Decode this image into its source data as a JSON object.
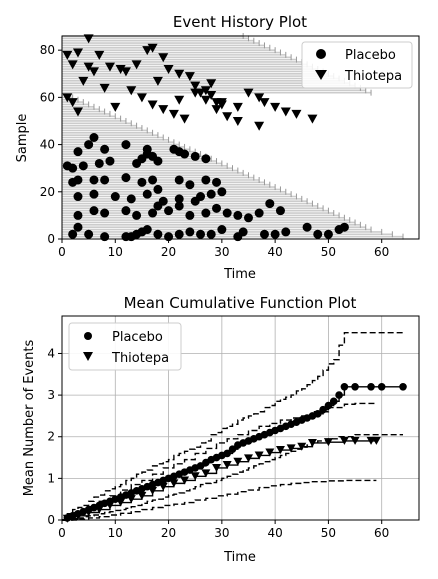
{
  "figure": {
    "top": {
      "title": "Event History Plot",
      "xlabel": "Time",
      "ylabel": "Sample",
      "legend": [
        {
          "label": "Placebo",
          "marker": "circle"
        },
        {
          "label": "Thiotepa",
          "marker": "triangle-down"
        }
      ]
    },
    "bottom": {
      "title": "Mean Cumulative Function Plot",
      "xlabel": "Time",
      "ylabel": "Mean Number of Events",
      "legend": [
        {
          "label": "Placebo",
          "marker": "circle"
        },
        {
          "label": "Thiotepa",
          "marker": "triangle-down"
        }
      ]
    }
  },
  "colors": {
    "lines": "#cccccc",
    "censor": "#999999",
    "marker": "#000000",
    "grid": "#b0b0b0"
  },
  "chart_data": [
    {
      "type": "scatter",
      "title": "Event History Plot",
      "xlabel": "Time",
      "ylabel": "Sample",
      "xlim": [
        0,
        67
      ],
      "ylim": [
        0,
        86
      ],
      "xticks": [
        0,
        10,
        20,
        30,
        40,
        50,
        60
      ],
      "yticks": [
        0,
        20,
        40,
        60,
        80
      ],
      "grid": false,
      "legend_position": "top-right",
      "series": [
        {
          "name": "Placebo",
          "marker": "circle",
          "points": [
            [
              2,
              2
            ],
            [
              3,
              5
            ],
            [
              5,
              2
            ],
            [
              8,
              1
            ],
            [
              12,
              1
            ],
            [
              13,
              1
            ],
            [
              14,
              2
            ],
            [
              15,
              3
            ],
            [
              16,
              4
            ],
            [
              18,
              2
            ],
            [
              20,
              1
            ],
            [
              22,
              2
            ],
            [
              24,
              3
            ],
            [
              26,
              2
            ],
            [
              28,
              2
            ],
            [
              30,
              4
            ],
            [
              33,
              1
            ],
            [
              34,
              3
            ],
            [
              38,
              2
            ],
            [
              40,
              2
            ],
            [
              42,
              3
            ],
            [
              46,
              5
            ],
            [
              48,
              2
            ],
            [
              50,
              2
            ],
            [
              52,
              4
            ],
            [
              53,
              5
            ],
            [
              3,
              10
            ],
            [
              6,
              12
            ],
            [
              8,
              11
            ],
            [
              12,
              12
            ],
            [
              14,
              10
            ],
            [
              17,
              11
            ],
            [
              18,
              14
            ],
            [
              20,
              12
            ],
            [
              22,
              14
            ],
            [
              24,
              10
            ],
            [
              25,
              16
            ],
            [
              27,
              11
            ],
            [
              29,
              13
            ],
            [
              31,
              11
            ],
            [
              33,
              10
            ],
            [
              35,
              9
            ],
            [
              37,
              11
            ],
            [
              39,
              15
            ],
            [
              41,
              12
            ],
            [
              3,
              18
            ],
            [
              6,
              19
            ],
            [
              10,
              18
            ],
            [
              13,
              17
            ],
            [
              16,
              19
            ],
            [
              18,
              21
            ],
            [
              19,
              16
            ],
            [
              22,
              17
            ],
            [
              26,
              18
            ],
            [
              28,
              19
            ],
            [
              30,
              20
            ],
            [
              2,
              24
            ],
            [
              3,
              25
            ],
            [
              6,
              25
            ],
            [
              8,
              25
            ],
            [
              12,
              26
            ],
            [
              15,
              24
            ],
            [
              17,
              25
            ],
            [
              22,
              25
            ],
            [
              24,
              23
            ],
            [
              27,
              25
            ],
            [
              29,
              24
            ],
            [
              1,
              31
            ],
            [
              2,
              30
            ],
            [
              4,
              31
            ],
            [
              7,
              32
            ],
            [
              9,
              33
            ],
            [
              14,
              32
            ],
            [
              15,
              34
            ],
            [
              16,
              36
            ],
            [
              18,
              33
            ],
            [
              21,
              38
            ],
            [
              22,
              37
            ],
            [
              23,
              36
            ],
            [
              25,
              35
            ],
            [
              27,
              34
            ],
            [
              3,
              37
            ],
            [
              5,
              40
            ],
            [
              6,
              43
            ],
            [
              8,
              38
            ],
            [
              12,
              40
            ],
            [
              16,
              38
            ],
            [
              17,
              35
            ]
          ]
        },
        {
          "name": "Thiotepa",
          "marker": "triangle-down",
          "points": [
            [
              1,
              78
            ],
            [
              2,
              74
            ],
            [
              3,
              79
            ],
            [
              5,
              85
            ],
            [
              7,
              78
            ],
            [
              9,
              73
            ],
            [
              11,
              72
            ],
            [
              12,
              71
            ],
            [
              14,
              74
            ],
            [
              17,
              81
            ],
            [
              19,
              77
            ],
            [
              20,
              72
            ],
            [
              22,
              70
            ],
            [
              24,
              69
            ],
            [
              25,
              65
            ],
            [
              27,
              63
            ],
            [
              28,
              61
            ],
            [
              30,
              57
            ],
            [
              33,
              56
            ],
            [
              35,
              62
            ],
            [
              37,
              60
            ],
            [
              38,
              58
            ],
            [
              40,
              56
            ],
            [
              42,
              54
            ],
            [
              44,
              53
            ],
            [
              47,
              51
            ],
            [
              1,
              60
            ],
            [
              2,
              58
            ],
            [
              3,
              54
            ],
            [
              4,
              67
            ],
            [
              6,
              71
            ],
            [
              8,
              64
            ],
            [
              10,
              56
            ],
            [
              13,
              63
            ],
            [
              15,
              60
            ],
            [
              17,
              57
            ],
            [
              19,
              55
            ],
            [
              21,
              53
            ],
            [
              23,
              51
            ],
            [
              25,
              62
            ],
            [
              27,
              59
            ],
            [
              29,
              55
            ],
            [
              31,
              52
            ],
            [
              33,
              50
            ],
            [
              37,
              48
            ],
            [
              5,
              73
            ],
            [
              16,
              80
            ],
            [
              18,
              67
            ],
            [
              22,
              59
            ],
            [
              26,
              62
            ],
            [
              28,
              66
            ],
            [
              29,
              58
            ],
            [
              30,
              58
            ]
          ]
        }
      ],
      "follow_up_ends": [
        64,
        62,
        60,
        58,
        57,
        56,
        55,
        54,
        53,
        52,
        51,
        50,
        49,
        48,
        47,
        46,
        45,
        44,
        43,
        42,
        41,
        40,
        39,
        38,
        37,
        36,
        35,
        34,
        33,
        32,
        31,
        30,
        29,
        28,
        27,
        26,
        25,
        24,
        23,
        22,
        21,
        20,
        19,
        18,
        17,
        16,
        15,
        14,
        13,
        12,
        11,
        10,
        9,
        8,
        7,
        6,
        5,
        4,
        3,
        2,
        1,
        58,
        57,
        56,
        55,
        54,
        53,
        52,
        51,
        50,
        49,
        48,
        47,
        46,
        45,
        44,
        43,
        42,
        41,
        40,
        39,
        38,
        37,
        36,
        35,
        34
      ]
    },
    {
      "type": "line",
      "title": "Mean Cumulative Function Plot",
      "xlabel": "Time",
      "ylabel": "Mean Number of Events",
      "xlim": [
        0,
        67
      ],
      "ylim": [
        0,
        4.9
      ],
      "xticks": [
        0,
        10,
        20,
        30,
        40,
        50,
        60
      ],
      "yticks": [
        0,
        1,
        2,
        3,
        4
      ],
      "grid": true,
      "legend_position": "top-left",
      "series": [
        {
          "name": "Placebo",
          "marker": "circle",
          "x": [
            1,
            2,
            3,
            4,
            5,
            6,
            7,
            8,
            9,
            10,
            11,
            12,
            13,
            14,
            15,
            16,
            17,
            18,
            19,
            20,
            21,
            22,
            23,
            24,
            25,
            26,
            27,
            28,
            29,
            30,
            31,
            32,
            33,
            34,
            35,
            36,
            37,
            38,
            39,
            40,
            41,
            42,
            43,
            44,
            45,
            46,
            47,
            48,
            49,
            50,
            51,
            52,
            53,
            55,
            58,
            60,
            64
          ],
          "y": [
            0.05,
            0.1,
            0.15,
            0.2,
            0.25,
            0.3,
            0.35,
            0.4,
            0.45,
            0.5,
            0.55,
            0.6,
            0.65,
            0.7,
            0.75,
            0.8,
            0.85,
            0.9,
            0.95,
            1.0,
            1.05,
            1.1,
            1.15,
            1.2,
            1.25,
            1.3,
            1.38,
            1.45,
            1.5,
            1.55,
            1.6,
            1.7,
            1.8,
            1.85,
            1.9,
            1.95,
            2.0,
            2.05,
            2.1,
            2.15,
            2.2,
            2.25,
            2.3,
            2.35,
            2.4,
            2.45,
            2.5,
            2.55,
            2.65,
            2.75,
            2.85,
            3.0,
            3.2,
            3.2,
            3.2,
            3.2,
            3.2
          ],
          "ci_lower": [
            0.0,
            0.02,
            0.05,
            0.08,
            0.1,
            0.12,
            0.15,
            0.18,
            0.2,
            0.23,
            0.25,
            0.28,
            0.32,
            0.35,
            0.4,
            0.45,
            0.48,
            0.5,
            0.55,
            0.6,
            0.62,
            0.65,
            0.7,
            0.75,
            0.8,
            0.85,
            0.88,
            0.9,
            0.95,
            1.0,
            1.05,
            1.1,
            1.15,
            1.2,
            1.25,
            1.3,
            1.35,
            1.4,
            1.45,
            1.5,
            1.55,
            1.6,
            1.65,
            1.7,
            1.75,
            1.8,
            1.85,
            1.9,
            1.9,
            1.95,
            1.95,
            2.0,
            2.0,
            2.05,
            2.05,
            2.05,
            2.05
          ],
          "ci_upper": [
            0.15,
            0.25,
            0.3,
            0.35,
            0.45,
            0.55,
            0.6,
            0.7,
            0.75,
            0.8,
            0.85,
            0.95,
            1.0,
            1.1,
            1.15,
            1.2,
            1.3,
            1.35,
            1.4,
            1.45,
            1.55,
            1.6,
            1.65,
            1.7,
            1.75,
            1.85,
            1.9,
            2.05,
            2.1,
            2.2,
            2.25,
            2.3,
            2.4,
            2.45,
            2.5,
            2.55,
            2.6,
            2.7,
            2.75,
            2.85,
            2.9,
            2.95,
            3.0,
            3.1,
            3.15,
            3.25,
            3.35,
            3.45,
            3.6,
            3.75,
            3.85,
            4.2,
            4.5,
            4.5,
            4.5,
            4.5,
            4.5
          ]
        },
        {
          "name": "Thiotepa",
          "marker": "triangle-down",
          "x": [
            1,
            3,
            5,
            7,
            9,
            11,
            13,
            15,
            17,
            19,
            21,
            23,
            25,
            27,
            29,
            31,
            33,
            35,
            37,
            39,
            41,
            43,
            45,
            47,
            50,
            53,
            55,
            58,
            59
          ],
          "y": [
            0.03,
            0.1,
            0.18,
            0.25,
            0.35,
            0.42,
            0.5,
            0.58,
            0.7,
            0.8,
            0.88,
            0.95,
            1.05,
            1.12,
            1.25,
            1.32,
            1.4,
            1.48,
            1.55,
            1.62,
            1.68,
            1.72,
            1.76,
            1.85,
            1.87,
            1.9,
            1.9,
            1.9,
            1.9
          ],
          "ci_lower": [
            0.0,
            0.02,
            0.05,
            0.08,
            0.12,
            0.16,
            0.2,
            0.25,
            0.3,
            0.35,
            0.38,
            0.42,
            0.48,
            0.52,
            0.58,
            0.62,
            0.68,
            0.72,
            0.78,
            0.82,
            0.85,
            0.88,
            0.9,
            0.92,
            0.94,
            0.95,
            0.95,
            0.95,
            0.95
          ],
          "ci_upper": [
            0.08,
            0.2,
            0.32,
            0.45,
            0.58,
            0.72,
            0.85,
            0.95,
            1.1,
            1.25,
            1.35,
            1.45,
            1.6,
            1.72,
            1.85,
            1.95,
            2.05,
            2.15,
            2.25,
            2.32,
            2.4,
            2.45,
            2.5,
            2.6,
            2.7,
            2.78,
            2.8,
            2.8,
            2.8
          ]
        }
      ]
    }
  ]
}
